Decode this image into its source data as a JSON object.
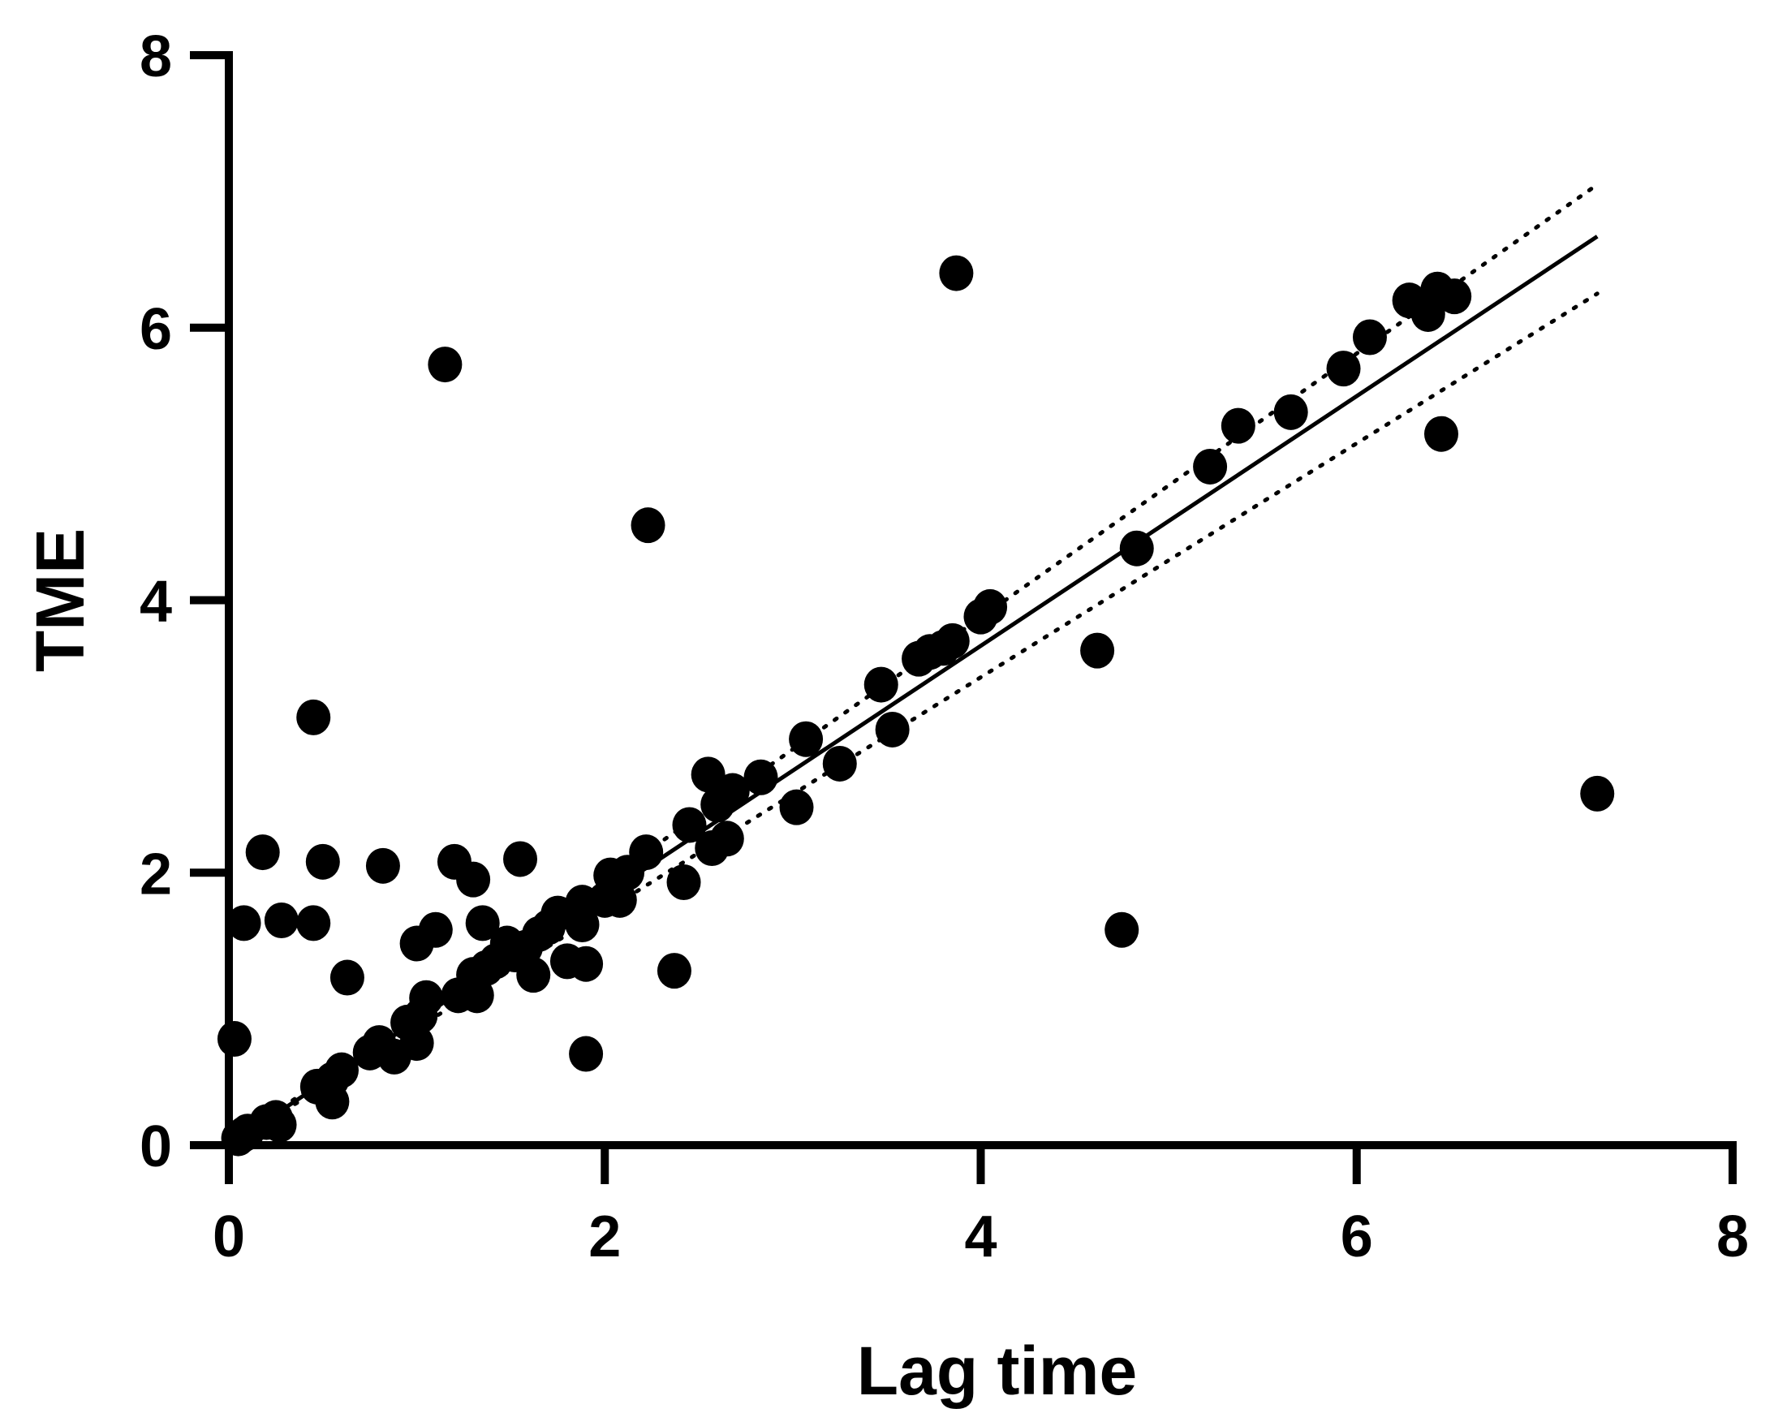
{
  "chart_data": {
    "type": "scatter",
    "title": "",
    "xlabel": "Lag time",
    "ylabel": "TME",
    "xlim": [
      0,
      8
    ],
    "ylim": [
      0,
      8
    ],
    "xticks": [
      "0",
      "2",
      "4",
      "6",
      "8"
    ],
    "yticks": [
      "0",
      "2",
      "4",
      "6",
      "8"
    ],
    "grid": false,
    "legend": "none",
    "points": [
      {
        "x": 0.03,
        "y": 0.78
      },
      {
        "x": 0.05,
        "y": 0.05
      },
      {
        "x": 0.08,
        "y": 0.08
      },
      {
        "x": 0.1,
        "y": 0.1
      },
      {
        "x": 0.08,
        "y": 1.63
      },
      {
        "x": 0.18,
        "y": 2.15
      },
      {
        "x": 0.2,
        "y": 0.17
      },
      {
        "x": 0.25,
        "y": 0.2
      },
      {
        "x": 0.28,
        "y": 1.65
      },
      {
        "x": 0.27,
        "y": 0.15
      },
      {
        "x": 0.45,
        "y": 3.14
      },
      {
        "x": 0.45,
        "y": 1.63
      },
      {
        "x": 0.47,
        "y": 0.43
      },
      {
        "x": 0.5,
        "y": 2.08
      },
      {
        "x": 0.55,
        "y": 0.48
      },
      {
        "x": 0.55,
        "y": 0.32
      },
      {
        "x": 0.6,
        "y": 0.55
      },
      {
        "x": 0.63,
        "y": 1.23
      },
      {
        "x": 0.75,
        "y": 0.68
      },
      {
        "x": 0.8,
        "y": 0.75
      },
      {
        "x": 0.82,
        "y": 2.05
      },
      {
        "x": 0.88,
        "y": 0.65
      },
      {
        "x": 0.95,
        "y": 0.9
      },
      {
        "x": 1.0,
        "y": 0.75
      },
      {
        "x": 1.0,
        "y": 1.48
      },
      {
        "x": 1.02,
        "y": 0.95
      },
      {
        "x": 1.05,
        "y": 1.08
      },
      {
        "x": 1.1,
        "y": 1.58
      },
      {
        "x": 1.15,
        "y": 5.73
      },
      {
        "x": 1.2,
        "y": 2.08
      },
      {
        "x": 1.22,
        "y": 1.1
      },
      {
        "x": 1.3,
        "y": 1.95
      },
      {
        "x": 1.3,
        "y": 1.25
      },
      {
        "x": 1.32,
        "y": 1.1
      },
      {
        "x": 1.35,
        "y": 1.63
      },
      {
        "x": 1.37,
        "y": 1.3
      },
      {
        "x": 1.42,
        "y": 1.35
      },
      {
        "x": 1.48,
        "y": 1.48
      },
      {
        "x": 1.52,
        "y": 1.4
      },
      {
        "x": 1.55,
        "y": 2.1
      },
      {
        "x": 1.58,
        "y": 1.45
      },
      {
        "x": 1.62,
        "y": 1.25
      },
      {
        "x": 1.65,
        "y": 1.55
      },
      {
        "x": 1.7,
        "y": 1.6
      },
      {
        "x": 1.75,
        "y": 1.7
      },
      {
        "x": 1.8,
        "y": 1.35
      },
      {
        "x": 1.88,
        "y": 1.62
      },
      {
        "x": 1.88,
        "y": 1.78
      },
      {
        "x": 1.9,
        "y": 1.33
      },
      {
        "x": 1.9,
        "y": 0.67
      },
      {
        "x": 2.0,
        "y": 1.8
      },
      {
        "x": 2.03,
        "y": 1.98
      },
      {
        "x": 2.08,
        "y": 1.8
      },
      {
        "x": 2.12,
        "y": 2.0
      },
      {
        "x": 2.22,
        "y": 2.15
      },
      {
        "x": 2.23,
        "y": 4.55
      },
      {
        "x": 2.37,
        "y": 1.28
      },
      {
        "x": 2.42,
        "y": 1.93
      },
      {
        "x": 2.45,
        "y": 2.35
      },
      {
        "x": 2.55,
        "y": 2.72
      },
      {
        "x": 2.57,
        "y": 2.18
      },
      {
        "x": 2.6,
        "y": 2.5
      },
      {
        "x": 2.65,
        "y": 2.25
      },
      {
        "x": 2.68,
        "y": 2.6
      },
      {
        "x": 2.83,
        "y": 2.7
      },
      {
        "x": 3.02,
        "y": 2.48
      },
      {
        "x": 3.07,
        "y": 2.98
      },
      {
        "x": 3.25,
        "y": 2.8
      },
      {
        "x": 3.47,
        "y": 3.38
      },
      {
        "x": 3.53,
        "y": 3.05
      },
      {
        "x": 3.67,
        "y": 3.57
      },
      {
        "x": 3.73,
        "y": 3.62
      },
      {
        "x": 3.8,
        "y": 3.65
      },
      {
        "x": 3.85,
        "y": 3.7
      },
      {
        "x": 3.87,
        "y": 6.4
      },
      {
        "x": 4.0,
        "y": 3.88
      },
      {
        "x": 4.05,
        "y": 3.95
      },
      {
        "x": 4.62,
        "y": 3.63
      },
      {
        "x": 4.75,
        "y": 1.58
      },
      {
        "x": 4.83,
        "y": 4.38
      },
      {
        "x": 5.22,
        "y": 4.98
      },
      {
        "x": 5.37,
        "y": 5.28
      },
      {
        "x": 5.65,
        "y": 5.38
      },
      {
        "x": 5.93,
        "y": 5.7
      },
      {
        "x": 6.07,
        "y": 5.93
      },
      {
        "x": 6.28,
        "y": 6.2
      },
      {
        "x": 6.38,
        "y": 6.1
      },
      {
        "x": 6.43,
        "y": 6.28
      },
      {
        "x": 6.45,
        "y": 5.22
      },
      {
        "x": 6.52,
        "y": 6.23
      },
      {
        "x": 7.28,
        "y": 2.58
      }
    ],
    "fit_line": {
      "x": [
        0,
        7.28
      ],
      "y": [
        0,
        6.67
      ]
    },
    "confidence_band": {
      "upper": {
        "x": [
          0,
          7.28
        ],
        "y": [
          0,
          7.05
        ]
      },
      "lower": {
        "x": [
          0,
          7.28
        ],
        "y": [
          0,
          6.25
        ]
      }
    }
  }
}
